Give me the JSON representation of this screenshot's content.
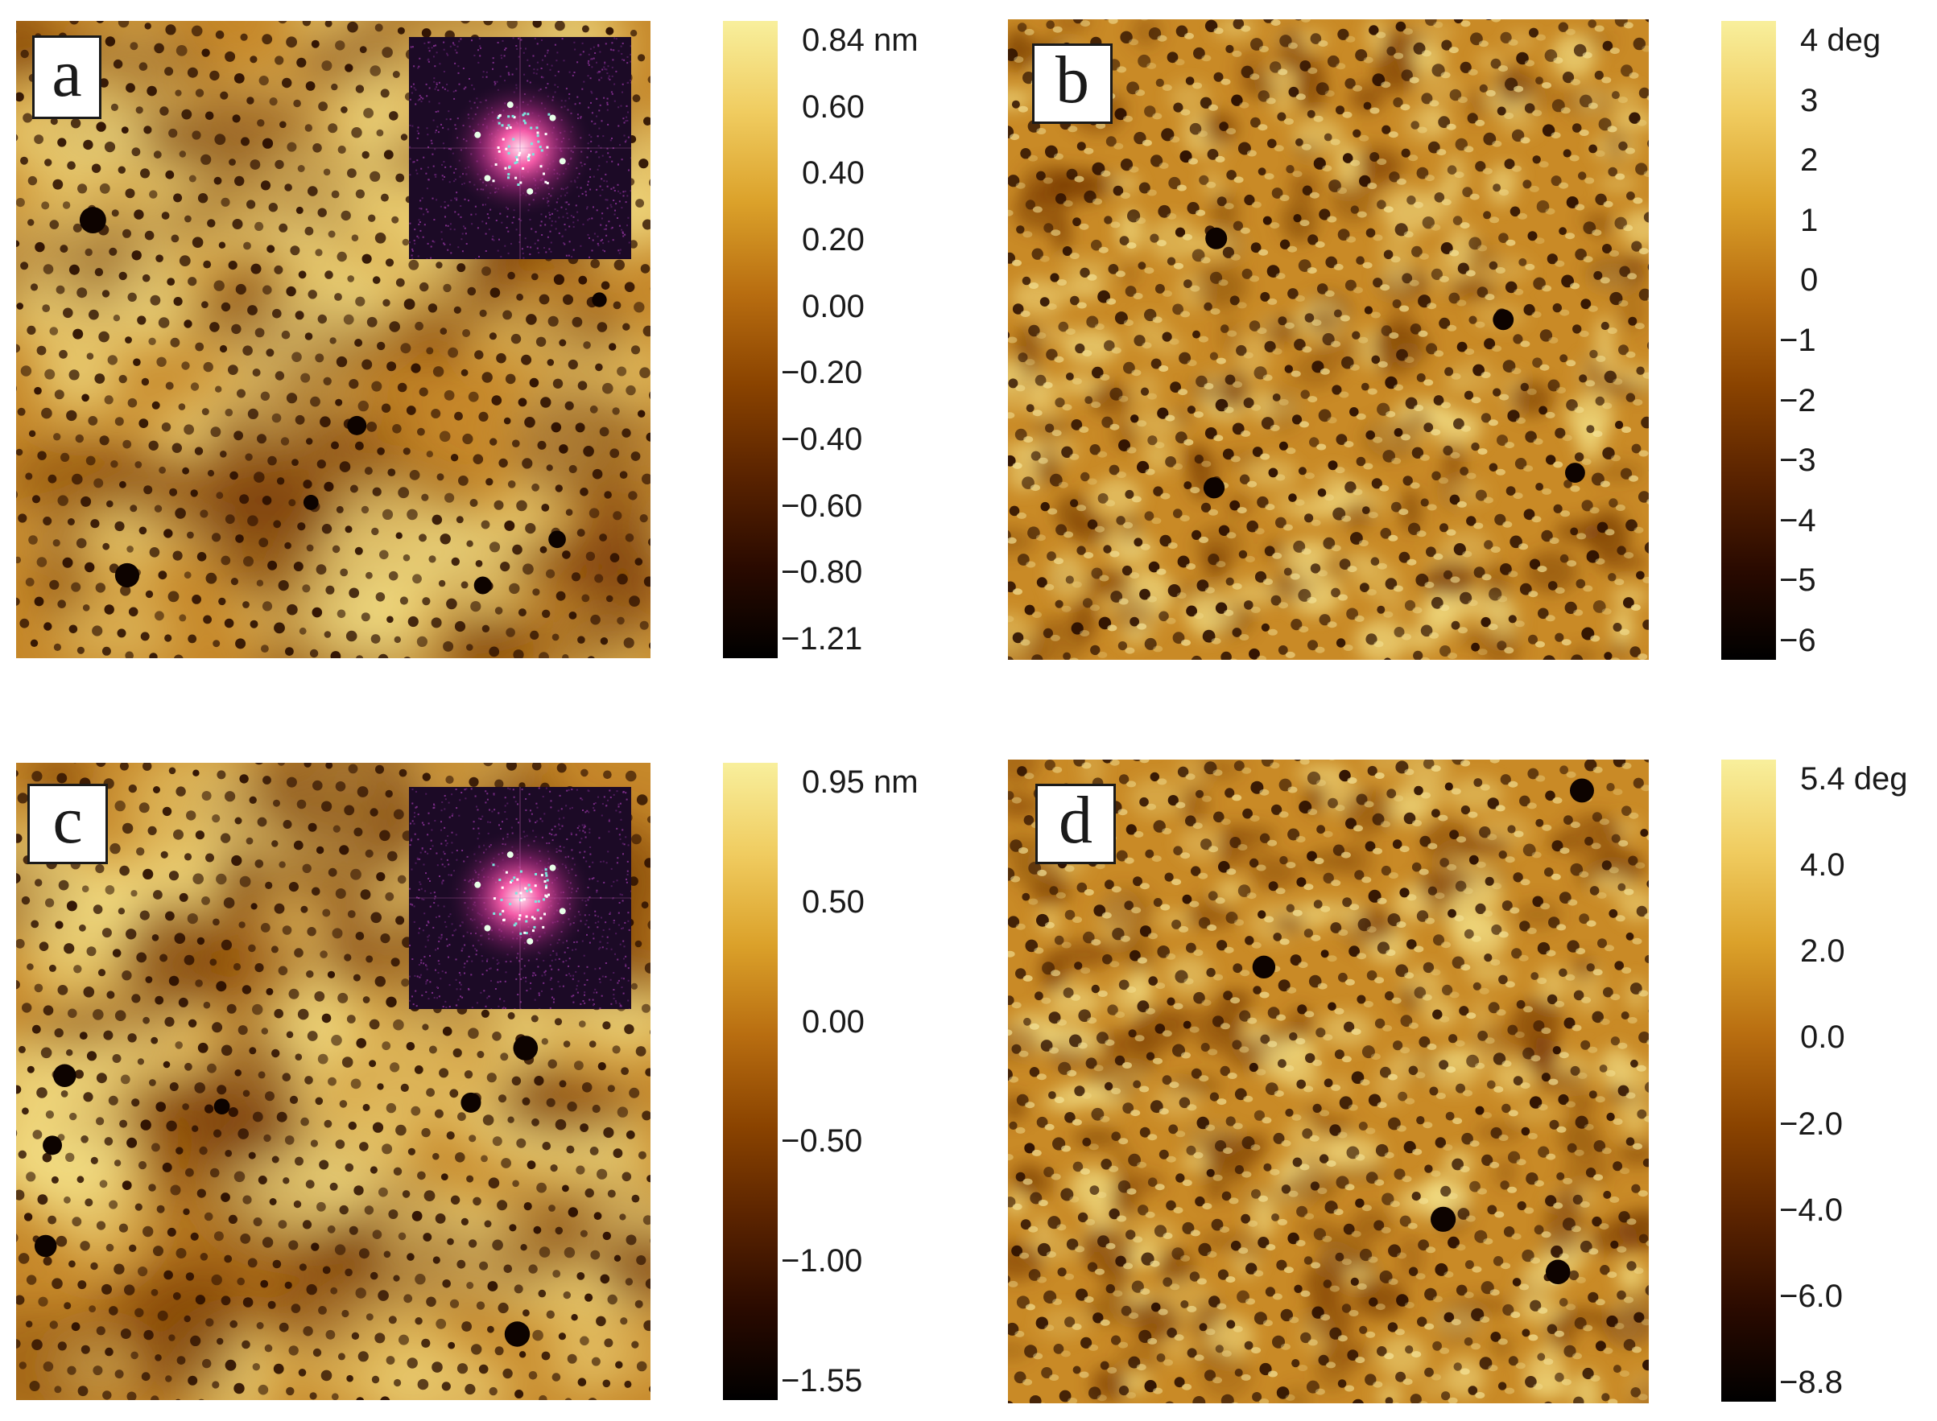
{
  "panels": [
    {
      "id": "a",
      "label": "a",
      "kind": "height",
      "has_fft_inset": true,
      "colorbar": {
        "ticks": [
          "0.84 nm",
          "0.60",
          "0.40",
          "0.20",
          "0.00",
          "−0.20",
          "−0.40",
          "−0.60",
          "−0.80",
          "−1.21"
        ]
      }
    },
    {
      "id": "b",
      "label": "b",
      "kind": "phase",
      "has_fft_inset": false,
      "colorbar": {
        "ticks": [
          "4 deg",
          "3",
          "2",
          "1",
          "0",
          "−1",
          "−2",
          "−3",
          "−4",
          "−5",
          "−6"
        ]
      }
    },
    {
      "id": "c",
      "label": "c",
      "kind": "height",
      "has_fft_inset": true,
      "colorbar": {
        "ticks": [
          "0.95 nm",
          "0.50",
          "0.00",
          "−0.50",
          "−1.00",
          "−1.55"
        ]
      }
    },
    {
      "id": "d",
      "label": "d",
      "kind": "phase",
      "has_fft_inset": false,
      "colorbar": {
        "ticks": [
          "5.4 deg",
          "4.0",
          "2.0",
          "0.0",
          "−2.0",
          "−4.0",
          "−6.0",
          "−8.8"
        ]
      }
    }
  ],
  "colormap": {
    "afm_gold": [
      "#000000",
      "#2a0a00",
      "#5a2300",
      "#8a4300",
      "#b86d10",
      "#dba12a",
      "#f0cc60",
      "#f8ef9c"
    ],
    "fft_background": "#1c0a26",
    "fft_glow": "#ff5fae"
  }
}
